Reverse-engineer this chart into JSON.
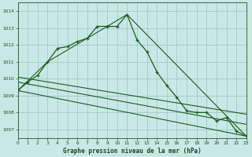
{
  "background_color": "#c8e8e8",
  "grid_color": "#a0c8c8",
  "line_color": "#1a5c1a",
  "main_x": [
    0,
    1,
    2,
    3,
    4,
    5,
    6,
    7,
    8,
    9,
    10,
    11,
    12,
    13,
    14,
    15,
    16,
    17,
    18,
    19,
    20,
    21,
    22,
    23
  ],
  "main_y": [
    1009.3,
    1009.8,
    1010.2,
    1011.0,
    1011.8,
    1011.9,
    1012.2,
    1012.4,
    1013.1,
    1013.1,
    1013.1,
    1013.8,
    1012.3,
    1011.6,
    1010.4,
    1009.6,
    1008.9,
    1008.1,
    1008.0,
    1008.0,
    1007.5,
    1007.7,
    1006.9,
    1006.6
  ],
  "straight_lines": [
    {
      "x": [
        0,
        3,
        11,
        23
      ],
      "y": [
        1009.3,
        1011.0,
        1013.8,
        1006.6
      ]
    },
    {
      "x": [
        0,
        23
      ],
      "y": [
        1009.3,
        1006.6
      ]
    },
    {
      "x": [
        0,
        23
      ],
      "y": [
        1009.8,
        1007.3
      ]
    },
    {
      "x": [
        0,
        23
      ],
      "y": [
        1010.1,
        1007.9
      ]
    }
  ],
  "xlim": [
    0,
    23
  ],
  "ylim": [
    1006.5,
    1014.5
  ],
  "yticks": [
    1007,
    1008,
    1009,
    1010,
    1011,
    1012,
    1013,
    1014
  ],
  "xticks": [
    0,
    1,
    2,
    3,
    4,
    5,
    6,
    7,
    8,
    9,
    10,
    11,
    12,
    13,
    14,
    15,
    16,
    17,
    18,
    19,
    20,
    21,
    22,
    23
  ],
  "xlabel": "Graphe pression niveau de la mer (hPa)"
}
